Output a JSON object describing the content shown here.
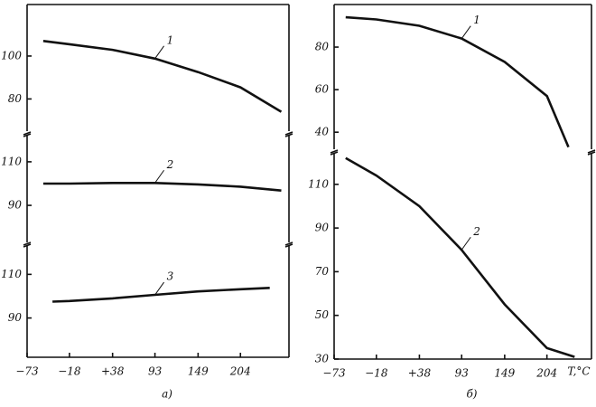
{
  "chart_data": [
    {
      "type": "line",
      "caption": "a)",
      "xlim": [
        -73,
        267
      ],
      "xticks": [
        {
          "value": -73,
          "label": "−73"
        },
        {
          "value": -18,
          "label": "−18"
        },
        {
          "value": 38,
          "label": "+38"
        },
        93,
        149,
        204
      ],
      "panels": [
        {
          "ylim": [
            65,
            124
          ],
          "yticks": [
            80,
            100
          ],
          "series": [
            {
              "name": "1",
              "color": "#111111",
              "x": [
                -52,
                -18,
                38,
                93,
                149,
                204,
                257
              ],
              "values": [
                107,
                105.5,
                102.9,
                98.8,
                92.5,
                85.4,
                74
              ]
            }
          ]
        },
        {
          "ylim": [
            73,
            122
          ],
          "yticks": [
            90,
            110
          ],
          "series": [
            {
              "name": "2",
              "color": "#111111",
              "x": [
                -52,
                -18,
                38,
                93,
                149,
                204,
                257
              ],
              "values": [
                100,
                100,
                100.3,
                100.3,
                99.6,
                98.6,
                96.8
              ]
            }
          ]
        },
        {
          "ylim": [
            72,
            123
          ],
          "yticks": [
            90,
            110
          ],
          "series": [
            {
              "name": "3",
              "color": "#111111",
              "x": [
                -40,
                -18,
                38,
                93,
                149,
                204,
                242
              ],
              "values": [
                97.5,
                97.8,
                99,
                100.6,
                102.2,
                103.2,
                103.8
              ]
            }
          ]
        }
      ]
    },
    {
      "type": "line",
      "caption": "б)",
      "xlabel": "T,°C",
      "xlim": [
        -73,
        262
      ],
      "xticks": [
        {
          "value": -73,
          "label": "−73"
        },
        {
          "value": -18,
          "label": "−18"
        },
        {
          "value": 38,
          "label": "+38"
        },
        93,
        149,
        204
      ],
      "panels": [
        {
          "ylim": [
            32,
            100
          ],
          "yticks": [
            40,
            60,
            80
          ],
          "series": [
            {
              "name": "1",
              "color": "#111111",
              "x": [
                -58,
                -18,
                38,
                93,
                149,
                204,
                232
              ],
              "values": [
                94,
                93,
                90,
                84,
                73,
                57,
                33
              ]
            }
          ]
        },
        {
          "ylim": [
            30,
            124
          ],
          "yticks": [
            30,
            50,
            70,
            90,
            110
          ],
          "series": [
            {
              "name": "2",
              "color": "#111111",
              "x": [
                -58,
                -18,
                38,
                93,
                149,
                204,
                240
              ],
              "values": [
                122,
                114,
                100,
                80,
                55,
                35,
                31
              ]
            }
          ]
        }
      ]
    }
  ]
}
